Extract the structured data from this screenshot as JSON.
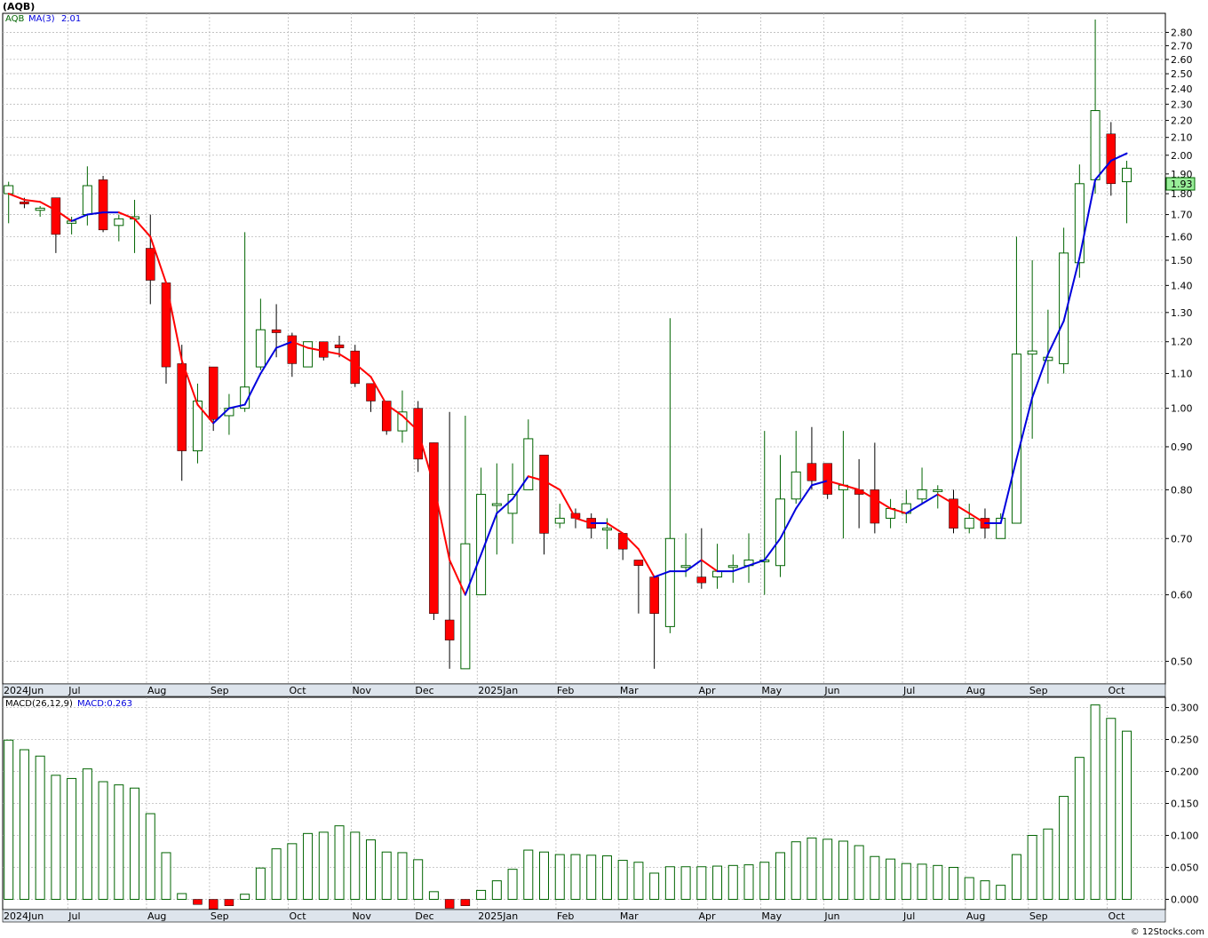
{
  "header": {
    "symbol": "(AQB)",
    "legend_symbol": "AQB",
    "legend_ma": "MA(3)",
    "legend_ma_value": "2.01",
    "macd_legend": "MACD(26,12,9)",
    "macd_value": "MACD:0.263",
    "last_price": "1.93",
    "watermark": "© 12Stocks.com"
  },
  "colors": {
    "up_stroke": "#006400",
    "down_fill": "#ff0000",
    "ma_up": "#0000dd",
    "ma_down": "#ff0000",
    "macd_stroke": "#006400",
    "macd_neg": "#ff0000",
    "axis_bg": "#dde4ec",
    "price_box": "#99ee99"
  },
  "chart_data": [
    {
      "type": "candlestick",
      "scale": "log",
      "ylim": [
        0.47,
        2.95
      ],
      "yticks": [
        "0.50",
        "0.60",
        "0.70",
        "0.80",
        "0.90",
        "1.00",
        "1.10",
        "1.20",
        "1.30",
        "1.40",
        "1.50",
        "1.60",
        "1.70",
        "1.80",
        "1.90",
        "2.00",
        "2.10",
        "2.20",
        "2.30",
        "2.40",
        "2.50",
        "2.60",
        "2.70",
        "2.80"
      ],
      "months": [
        {
          "label": "2024Jun",
          "week": 0
        },
        {
          "label": "Jul",
          "week": 4.2
        },
        {
          "label": "Aug",
          "week": 9.2
        },
        {
          "label": "Sep",
          "week": 13.2
        },
        {
          "label": "Oct",
          "week": 18.2
        },
        {
          "label": "Nov",
          "week": 22.2
        },
        {
          "label": "Dec",
          "week": 26.2
        },
        {
          "label": "2025Jan",
          "week": 30.2
        },
        {
          "label": "Feb",
          "week": 35.2
        },
        {
          "label": "Mar",
          "week": 39.2
        },
        {
          "label": "Apr",
          "week": 44.2
        },
        {
          "label": "May",
          "week": 48.2
        },
        {
          "label": "Jun",
          "week": 52.2
        },
        {
          "label": "Jul",
          "week": 57.2
        },
        {
          "label": "Aug",
          "week": 61.2
        },
        {
          "label": "Sep",
          "week": 65.2
        },
        {
          "label": "Oct",
          "week": 70.2
        }
      ],
      "candles": [
        [
          1.8,
          1.84,
          1.66,
          1.86
        ],
        [
          1.76,
          1.75,
          1.73,
          1.78
        ],
        [
          1.72,
          1.73,
          1.69,
          1.74
        ],
        [
          1.78,
          1.61,
          1.53,
          1.78
        ],
        [
          1.66,
          1.67,
          1.61,
          1.69
        ],
        [
          1.7,
          1.84,
          1.65,
          1.94
        ],
        [
          1.87,
          1.63,
          1.62,
          1.89
        ],
        [
          1.65,
          1.68,
          1.58,
          1.7
        ],
        [
          1.68,
          1.69,
          1.53,
          1.77
        ],
        [
          1.55,
          1.42,
          1.33,
          1.7
        ],
        [
          1.41,
          1.12,
          1.07,
          1.41
        ],
        [
          1.13,
          0.89,
          0.82,
          1.19
        ],
        [
          0.89,
          1.02,
          0.86,
          1.07
        ],
        [
          1.12,
          0.97,
          0.94,
          1.12
        ],
        [
          0.98,
          1.0,
          0.93,
          1.04
        ],
        [
          1.0,
          1.06,
          0.99,
          1.62
        ],
        [
          1.12,
          1.24,
          1.11,
          1.35
        ],
        [
          1.24,
          1.23,
          1.15,
          1.33
        ],
        [
          1.22,
          1.13,
          1.09,
          1.23
        ],
        [
          1.12,
          1.2,
          1.12,
          1.2
        ],
        [
          1.2,
          1.15,
          1.14,
          1.19
        ],
        [
          1.19,
          1.18,
          1.15,
          1.22
        ],
        [
          1.17,
          1.07,
          1.06,
          1.19
        ],
        [
          1.07,
          1.02,
          0.99,
          1.07
        ],
        [
          1.02,
          0.94,
          0.93,
          1.02
        ],
        [
          0.94,
          0.99,
          0.91,
          1.05
        ],
        [
          1.0,
          0.87,
          0.84,
          1.02
        ],
        [
          0.91,
          0.57,
          0.56,
          0.91
        ],
        [
          0.56,
          0.53,
          0.49,
          0.99
        ],
        [
          0.49,
          0.69,
          0.49,
          0.98
        ],
        [
          0.6,
          0.79,
          0.6,
          0.85
        ],
        [
          0.77,
          0.77,
          0.67,
          0.86
        ],
        [
          0.75,
          0.79,
          0.69,
          0.86
        ],
        [
          0.8,
          0.92,
          0.8,
          0.97
        ],
        [
          0.88,
          0.71,
          0.67,
          0.88
        ],
        [
          0.73,
          0.74,
          0.72,
          0.77
        ],
        [
          0.75,
          0.74,
          0.72,
          0.76
        ],
        [
          0.74,
          0.72,
          0.7,
          0.75
        ],
        [
          0.72,
          0.72,
          0.68,
          0.74
        ],
        [
          0.71,
          0.68,
          0.66,
          0.71
        ],
        [
          0.66,
          0.65,
          0.57,
          0.66
        ],
        [
          0.63,
          0.57,
          0.49,
          0.63
        ],
        [
          0.55,
          0.7,
          0.54,
          1.28
        ],
        [
          0.65,
          0.65,
          0.63,
          0.71
        ],
        [
          0.63,
          0.62,
          0.61,
          0.72
        ],
        [
          0.63,
          0.64,
          0.61,
          0.69
        ],
        [
          0.65,
          0.65,
          0.62,
          0.67
        ],
        [
          0.65,
          0.66,
          0.62,
          0.71
        ],
        [
          0.66,
          0.66,
          0.6,
          0.94
        ],
        [
          0.65,
          0.78,
          0.63,
          0.88
        ],
        [
          0.78,
          0.84,
          0.77,
          0.94
        ],
        [
          0.86,
          0.82,
          0.8,
          0.95
        ],
        [
          0.86,
          0.79,
          0.78,
          0.85
        ],
        [
          0.8,
          0.81,
          0.7,
          0.94
        ],
        [
          0.8,
          0.79,
          0.72,
          0.87
        ],
        [
          0.8,
          0.73,
          0.71,
          0.91
        ],
        [
          0.74,
          0.76,
          0.72,
          0.78
        ],
        [
          0.75,
          0.77,
          0.73,
          0.8
        ],
        [
          0.78,
          0.8,
          0.77,
          0.85
        ],
        [
          0.8,
          0.8,
          0.76,
          0.81
        ],
        [
          0.78,
          0.72,
          0.71,
          0.8
        ],
        [
          0.72,
          0.74,
          0.71,
          0.77
        ],
        [
          0.74,
          0.72,
          0.7,
          0.76
        ],
        [
          0.7,
          0.74,
          0.7,
          0.75
        ],
        [
          0.73,
          1.16,
          0.73,
          1.6
        ],
        [
          1.16,
          1.17,
          0.92,
          1.5
        ],
        [
          1.14,
          1.15,
          1.07,
          1.31
        ],
        [
          1.13,
          1.53,
          1.1,
          1.64
        ],
        [
          1.49,
          1.85,
          1.43,
          1.95
        ],
        [
          1.87,
          2.26,
          1.8,
          2.9
        ],
        [
          2.12,
          1.85,
          1.79,
          2.19
        ],
        [
          1.86,
          1.93,
          1.66,
          1.97
        ]
      ],
      "ma": [
        1.8,
        1.77,
        1.76,
        1.72,
        1.67,
        1.7,
        1.71,
        1.71,
        1.68,
        1.6,
        1.41,
        1.14,
        1.01,
        0.96,
        1.0,
        1.01,
        1.1,
        1.18,
        1.2,
        1.18,
        1.17,
        1.16,
        1.13,
        1.09,
        1.01,
        0.98,
        0.94,
        0.81,
        0.66,
        0.6,
        0.67,
        0.75,
        0.78,
        0.83,
        0.82,
        0.8,
        0.74,
        0.73,
        0.73,
        0.71,
        0.68,
        0.63,
        0.64,
        0.64,
        0.66,
        0.64,
        0.64,
        0.65,
        0.66,
        0.7,
        0.76,
        0.81,
        0.82,
        0.81,
        0.8,
        0.78,
        0.76,
        0.75,
        0.77,
        0.79,
        0.77,
        0.75,
        0.73,
        0.73,
        0.87,
        1.03,
        1.16,
        1.27,
        1.51,
        1.87,
        1.97,
        2.01
      ]
    },
    {
      "type": "bar",
      "title": "MACD(26,12,9)",
      "ylim": [
        -0.016,
        0.316
      ],
      "yticks": [
        "0.000",
        "0.050",
        "0.100",
        "0.150",
        "0.200",
        "0.250",
        "0.300"
      ],
      "values": [
        0.249,
        0.234,
        0.224,
        0.194,
        0.189,
        0.204,
        0.184,
        0.179,
        0.174,
        0.134,
        0.073,
        0.009,
        -0.008,
        -0.015,
        -0.01,
        0.008,
        0.049,
        0.079,
        0.087,
        0.103,
        0.105,
        0.115,
        0.105,
        0.093,
        0.074,
        0.073,
        0.062,
        0.012,
        -0.014,
        -0.01,
        0.014,
        0.029,
        0.047,
        0.077,
        0.074,
        0.07,
        0.07,
        0.069,
        0.068,
        0.061,
        0.058,
        0.041,
        0.051,
        0.051,
        0.051,
        0.052,
        0.053,
        0.054,
        0.058,
        0.073,
        0.09,
        0.096,
        0.094,
        0.091,
        0.084,
        0.067,
        0.063,
        0.056,
        0.055,
        0.053,
        0.05,
        0.034,
        0.029,
        0.022,
        0.07,
        0.1,
        0.11,
        0.161,
        0.222,
        0.304,
        0.283,
        0.263
      ]
    }
  ]
}
